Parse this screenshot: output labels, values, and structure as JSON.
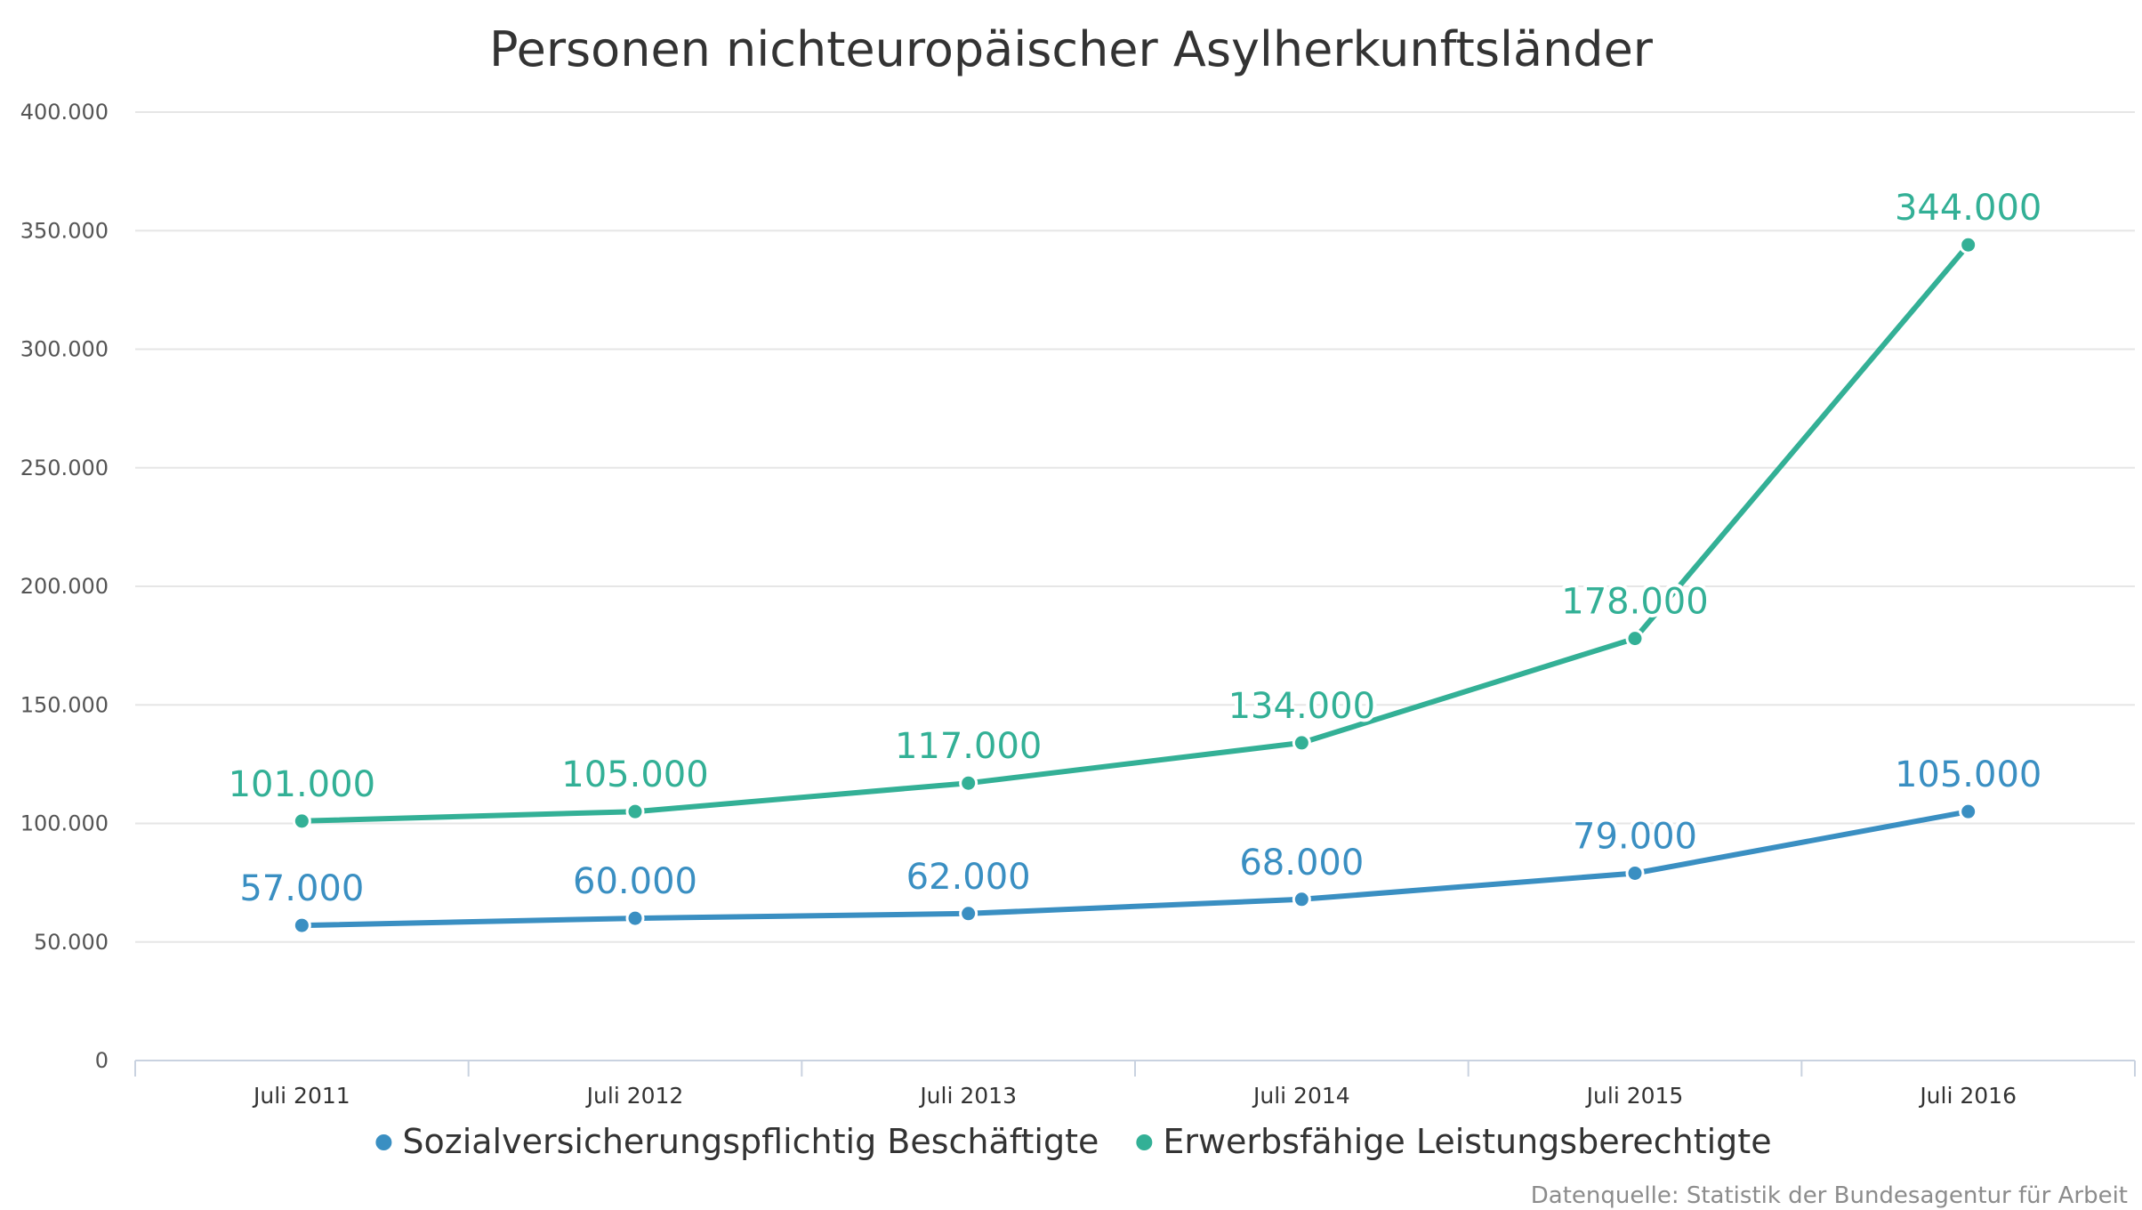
{
  "chart_data": {
    "type": "line",
    "title": "Personen nichteuropäischer Asylherkunftsländer",
    "categories": [
      "Juli 2011",
      "Juli 2012",
      "Juli 2013",
      "Juli 2014",
      "Juli 2015",
      "Juli 2016"
    ],
    "series": [
      {
        "name": "Sozialversicherungspflichtig Beschäftigte",
        "color": "#3a8fc2",
        "values": [
          57000,
          60000,
          62000,
          68000,
          79000,
          105000
        ],
        "labels": [
          "57.000",
          "60.000",
          "62.000",
          "68.000",
          "79.000",
          "105.000"
        ]
      },
      {
        "name": "Erwerbsfähige Leistungsberechtigte",
        "color": "#33b096",
        "values": [
          101000,
          105000,
          117000,
          134000,
          178000,
          344000
        ],
        "labels": [
          "101.000",
          "105.000",
          "117.000",
          "134.000",
          "178.000",
          "344.000"
        ]
      }
    ],
    "ylim": [
      0,
      400000
    ],
    "yticks": [
      0,
      50000,
      100000,
      150000,
      200000,
      250000,
      300000,
      350000,
      400000
    ],
    "ytick_labels": [
      "0",
      "50.000",
      "100.000",
      "150.000",
      "200.000",
      "250.000",
      "300.000",
      "350.000",
      "400.000"
    ],
    "xlabel": "",
    "ylabel": "",
    "grid": true,
    "legend_position": "bottom-center",
    "source": "Datenquelle: Statistik der Bundesagentur für Arbeit"
  }
}
